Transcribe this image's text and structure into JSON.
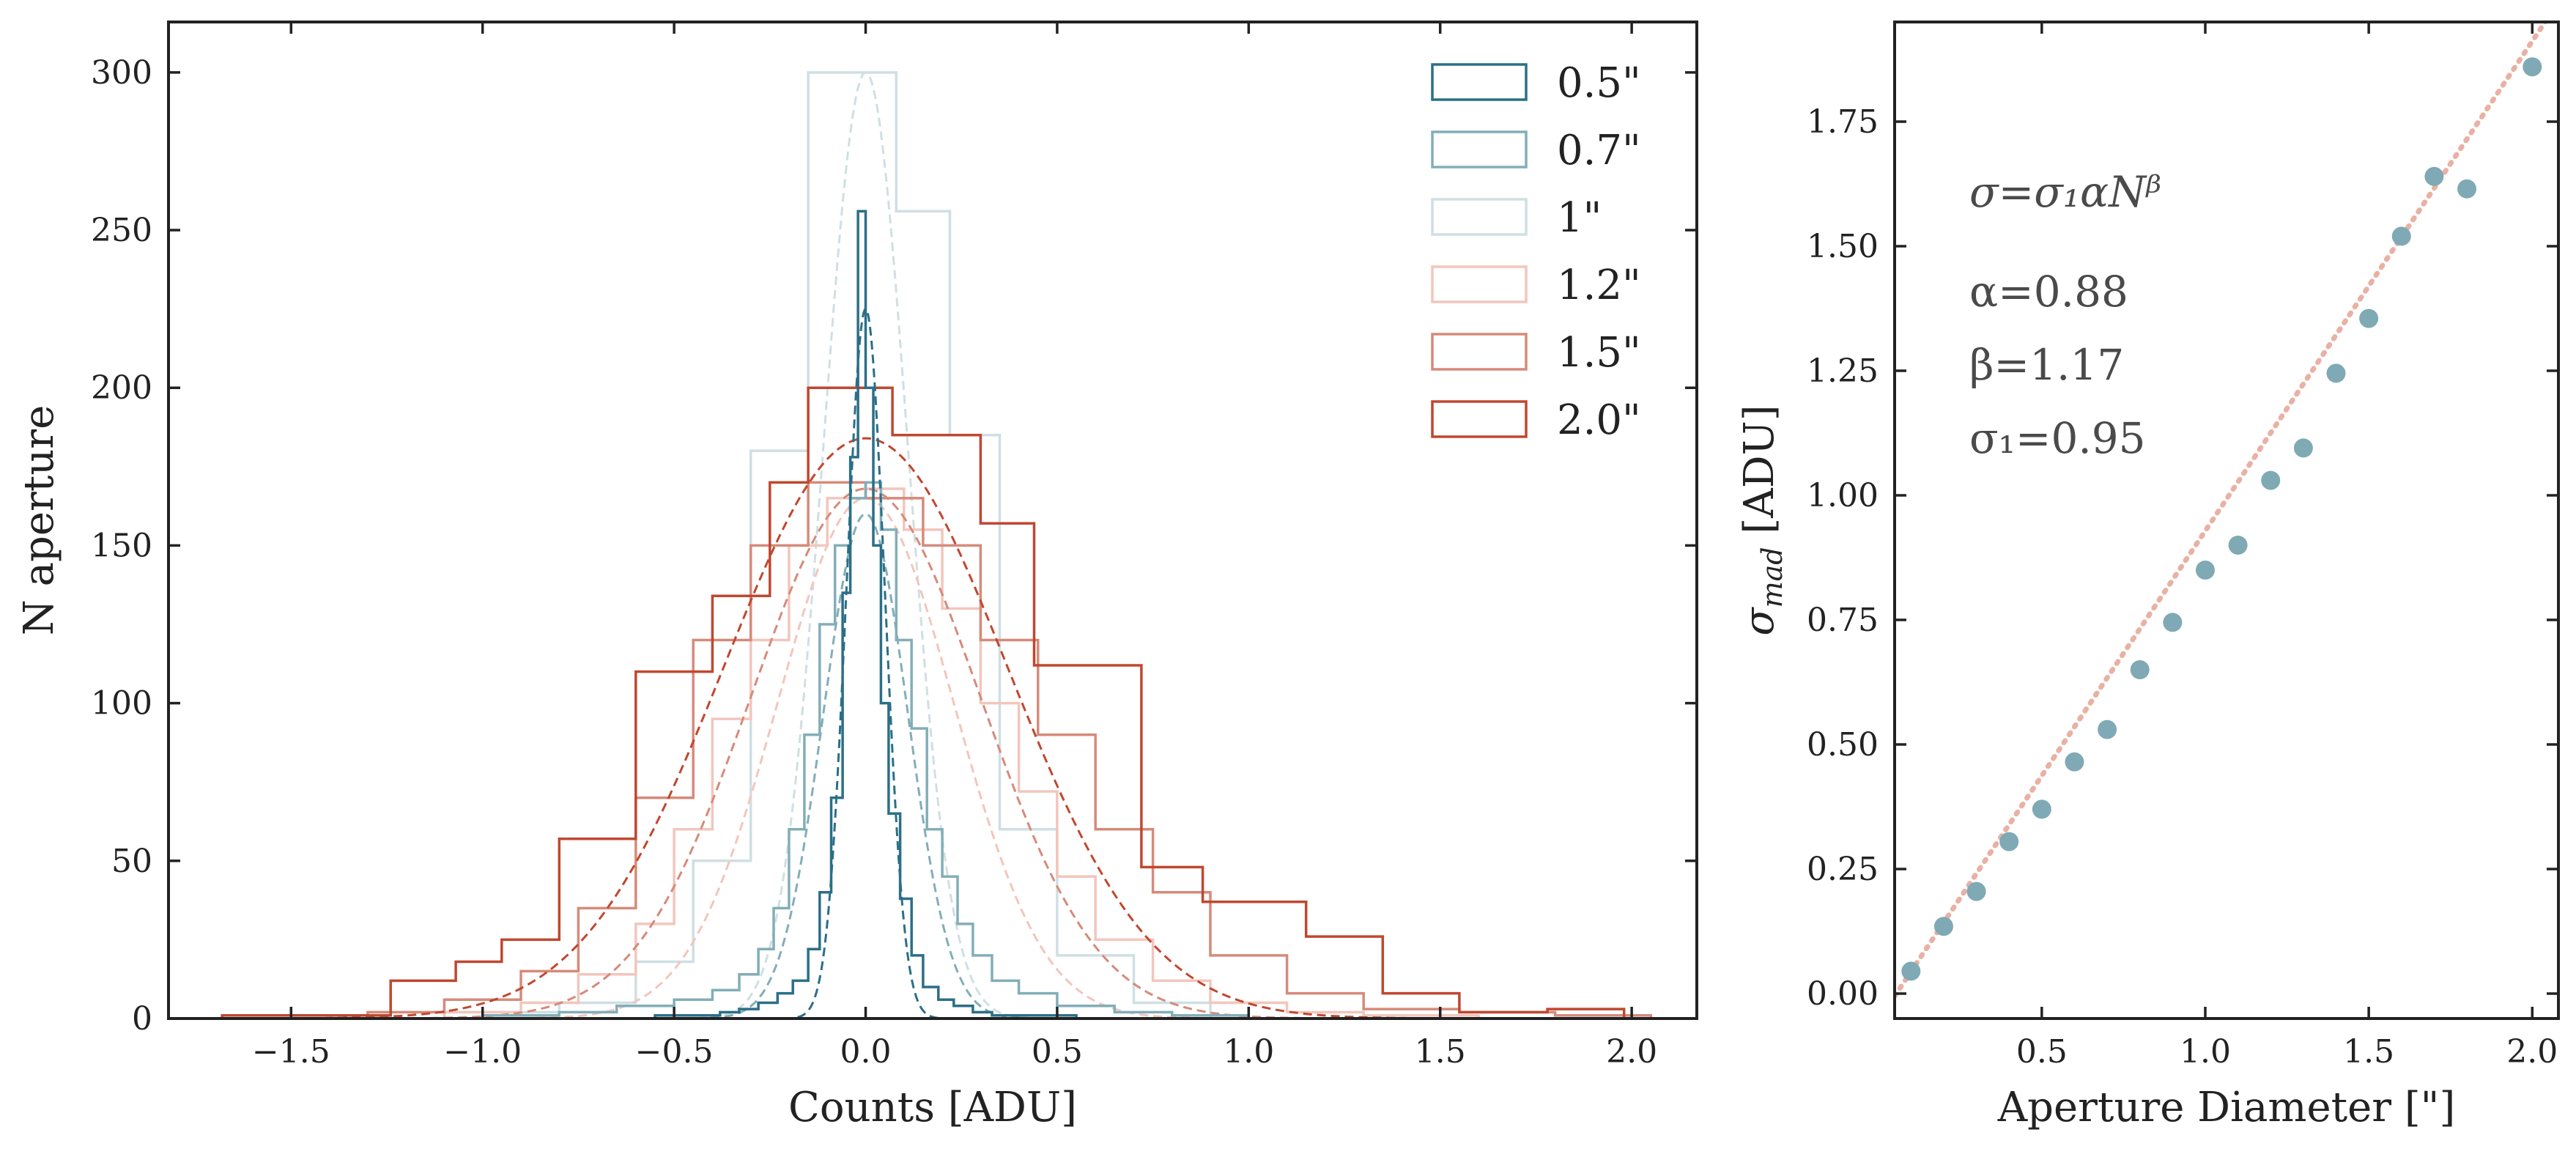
{
  "chart_data": [
    {
      "type": "histogram",
      "xlabel": "Counts [ADU]",
      "ylabel": "N aperture",
      "xlim": [
        -1.82,
        2.17
      ],
      "ylim": [
        0,
        316
      ],
      "xticks": [
        -1.5,
        -1.0,
        -0.5,
        0.0,
        0.5,
        1.0,
        1.5,
        2.0
      ],
      "xtick_labels": [
        "−1.5",
        "−1.0",
        "−0.5",
        "0.0",
        "0.5",
        "1.0",
        "1.5",
        "2.0"
      ],
      "yticks": [
        0,
        50,
        100,
        150,
        200,
        250,
        300
      ],
      "ytick_labels": [
        "0",
        "50",
        "100",
        "150",
        "200",
        "250",
        "300"
      ],
      "legend_position": "top-right",
      "series": [
        {
          "name": "0.5\"",
          "color": "#2b6f87",
          "fit_peak": 225,
          "fit_sigma": 0.05,
          "edges": [
            -0.55,
            -0.45,
            -0.38,
            -0.33,
            -0.28,
            -0.23,
            -0.19,
            -0.15,
            -0.12,
            -0.09,
            -0.06,
            -0.04,
            -0.02,
            0.0,
            0.02,
            0.04,
            0.06,
            0.09,
            0.12,
            0.15,
            0.19,
            0.23,
            0.28,
            0.33,
            0.38,
            0.45,
            0.55
          ],
          "counts": [
            1,
            1,
            2,
            3,
            5,
            8,
            12,
            22,
            40,
            70,
            135,
            178,
            256,
            200,
            150,
            100,
            65,
            38,
            20,
            10,
            6,
            4,
            2,
            1,
            1,
            1
          ]
        },
        {
          "name": "0.7\"",
          "color": "#82aeb8",
          "fit_peak": 160,
          "fit_sigma": 0.11,
          "edges": [
            -1.0,
            -0.8,
            -0.65,
            -0.5,
            -0.4,
            -0.33,
            -0.28,
            -0.24,
            -0.2,
            -0.16,
            -0.12,
            -0.08,
            -0.04,
            0.0,
            0.04,
            0.08,
            0.12,
            0.16,
            0.2,
            0.24,
            0.28,
            0.33,
            0.4,
            0.5,
            0.65,
            0.8,
            1.0
          ],
          "counts": [
            1,
            2,
            4,
            6,
            9,
            14,
            22,
            35,
            60,
            90,
            125,
            150,
            165,
            170,
            155,
            120,
            92,
            60,
            45,
            30,
            20,
            12,
            8,
            4,
            2,
            1
          ]
        },
        {
          "name": "1\"",
          "color": "#cfdfe3",
          "fit_peak": 300,
          "fit_sigma": 0.11,
          "edges": [
            -1.0,
            -0.8,
            -0.6,
            -0.45,
            -0.3,
            -0.15,
            -0.03,
            0.08,
            0.22,
            0.35,
            0.5,
            0.7,
            0.9
          ],
          "counts": [
            2,
            5,
            18,
            50,
            180,
            300,
            300,
            256,
            185,
            60,
            20,
            5
          ]
        },
        {
          "name": "1.2\"",
          "color": "#f2c6bc",
          "fit_peak": 165,
          "fit_sigma": 0.23,
          "edges": [
            -1.1,
            -0.9,
            -0.75,
            -0.6,
            -0.5,
            -0.4,
            -0.3,
            -0.2,
            -0.1,
            0.0,
            0.1,
            0.2,
            0.3,
            0.4,
            0.5,
            0.6,
            0.75,
            0.9,
            1.1,
            1.3,
            1.6
          ],
          "counts": [
            2,
            5,
            14,
            30,
            60,
            95,
            120,
            150,
            165,
            168,
            155,
            130,
            100,
            72,
            45,
            25,
            12,
            5,
            2,
            1
          ]
        },
        {
          "name": "1.5\"",
          "color": "#d68a7a",
          "fit_peak": 168,
          "fit_sigma": 0.3,
          "edges": [
            -1.3,
            -1.1,
            -0.9,
            -0.75,
            -0.6,
            -0.45,
            -0.3,
            -0.15,
            0.0,
            0.15,
            0.3,
            0.45,
            0.6,
            0.75,
            0.9,
            1.1,
            1.3,
            1.55,
            1.8,
            2.05
          ],
          "counts": [
            2,
            6,
            15,
            35,
            70,
            120,
            150,
            170,
            165,
            150,
            120,
            90,
            60,
            40,
            20,
            8,
            3,
            2,
            1
          ]
        },
        {
          "name": "2.0\"",
          "color": "#c0472f",
          "fit_peak": 184,
          "fit_sigma": 0.37,
          "edges": [
            -1.68,
            -1.24,
            -1.07,
            -0.95,
            -0.8,
            -0.6,
            -0.4,
            -0.25,
            -0.15,
            0.07,
            0.3,
            0.44,
            0.72,
            0.88,
            1.15,
            1.35,
            1.55,
            1.78,
            1.98
          ],
          "counts": [
            1,
            12,
            18,
            25,
            57,
            110,
            134,
            170,
            200,
            185,
            157,
            112,
            48,
            37,
            26,
            8,
            2,
            3
          ]
        }
      ]
    },
    {
      "type": "scatter",
      "xlabel": "Aperture Diameter [\"]",
      "ylabel": "σ",
      "ylabel_sub": "mad",
      "ylabel_suffix": " [ADU]",
      "xlim": [
        0.05,
        2.08
      ],
      "ylim": [
        -0.05,
        1.95
      ],
      "xticks": [
        0.5,
        1.0,
        1.5,
        2.0
      ],
      "xtick_labels": [
        "0.5",
        "1.0",
        "1.5",
        "2.0"
      ],
      "yticks": [
        0.0,
        0.25,
        0.5,
        0.75,
        1.0,
        1.25,
        1.5,
        1.75
      ],
      "ytick_labels": [
        "0.00",
        "0.25",
        "0.50",
        "0.75",
        "1.00",
        "1.25",
        "1.50",
        "1.75"
      ],
      "point_color": "#7fa9b5",
      "fit_color": "#e9b1a3",
      "fit_line": {
        "x": [
          0.05,
          2.08
        ],
        "y": [
          -0.005,
          1.99
        ]
      },
      "points": {
        "x": [
          0.1,
          0.2,
          0.3,
          0.4,
          0.5,
          0.6,
          0.7,
          0.8,
          0.9,
          1.0,
          1.1,
          1.2,
          1.3,
          1.4,
          1.5,
          1.6,
          1.7,
          1.8,
          2.0
        ],
        "y": [
          0.045,
          0.135,
          0.205,
          0.305,
          0.37,
          0.465,
          0.53,
          0.65,
          0.745,
          0.85,
          0.9,
          1.03,
          1.095,
          1.245,
          1.355,
          1.52,
          1.64,
          1.615,
          1.86
        ]
      },
      "annotations": {
        "formula": "σ=σ₁αNᵝ",
        "alpha": "α=0.88",
        "beta": "β=1.17",
        "sigma1": "σ₁=0.95"
      }
    }
  ]
}
